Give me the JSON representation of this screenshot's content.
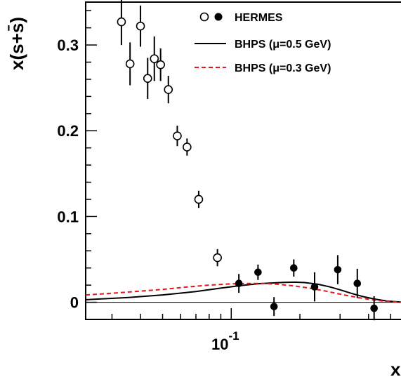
{
  "chart_data": {
    "type": "scatter",
    "xscale": "log",
    "xlim": [
      0.023,
      0.6
    ],
    "ylim": [
      -0.02,
      0.35
    ],
    "ylabel": "x(s+s̄)",
    "xlabel": "x",
    "yticks": [
      {
        "value": 0,
        "label": "0"
      },
      {
        "value": 0.1,
        "label": "0.1"
      },
      {
        "value": 0.2,
        "label": "0.2"
      },
      {
        "value": 0.3,
        "label": "0.3"
      }
    ],
    "xtick_major": {
      "value": 0.1,
      "base": "10",
      "exponent": "-1"
    },
    "xtick_minor": [
      0.03,
      0.04,
      0.05,
      0.06,
      0.07,
      0.08,
      0.09,
      0.2,
      0.3,
      0.4,
      0.5
    ],
    "legend": {
      "position": "top-right",
      "entries": [
        {
          "label": "HERMES",
          "marker": "open-and-filled-circle"
        },
        {
          "label": "BHPS (μ=0.5 GeV)",
          "style": "solid",
          "color": "#000000"
        },
        {
          "label": "BHPS (μ=0.3 GeV)",
          "style": "dashed",
          "color": "#e8141c"
        }
      ]
    },
    "series": [
      {
        "name": "HERMES",
        "marker": "open-circle",
        "points": [
          {
            "x": 0.033,
            "y": 0.327,
            "err": 0.027
          },
          {
            "x": 0.036,
            "y": 0.278,
            "err": 0.025
          },
          {
            "x": 0.04,
            "y": 0.322,
            "err": 0.024
          },
          {
            "x": 0.043,
            "y": 0.261,
            "err": 0.024
          },
          {
            "x": 0.046,
            "y": 0.284,
            "err": 0.026
          },
          {
            "x": 0.049,
            "y": 0.277,
            "err": 0.019
          },
          {
            "x": 0.053,
            "y": 0.248,
            "err": 0.016
          },
          {
            "x": 0.058,
            "y": 0.194,
            "err": 0.012
          },
          {
            "x": 0.064,
            "y": 0.181,
            "err": 0.01
          },
          {
            "x": 0.072,
            "y": 0.12,
            "err": 0.01
          },
          {
            "x": 0.087,
            "y": 0.052,
            "err": 0.01
          }
        ]
      },
      {
        "name": "HERMES",
        "marker": "filled-circle",
        "points": [
          {
            "x": 0.108,
            "y": 0.022,
            "err": 0.011
          },
          {
            "x": 0.131,
            "y": 0.035,
            "err": 0.009
          },
          {
            "x": 0.154,
            "y": -0.005,
            "err": 0.011
          },
          {
            "x": 0.188,
            "y": 0.04,
            "err": 0.01
          },
          {
            "x": 0.232,
            "y": 0.018,
            "err": 0.017
          },
          {
            "x": 0.293,
            "y": 0.038,
            "err": 0.017
          },
          {
            "x": 0.357,
            "y": 0.022,
            "err": 0.017
          },
          {
            "x": 0.423,
            "y": -0.007,
            "err": 0.014
          }
        ]
      },
      {
        "name": "BHPS (μ=0.5 GeV)",
        "style": "solid",
        "color": "#000000",
        "points": [
          {
            "x": 0.023,
            "y": 0.003
          },
          {
            "x": 0.035,
            "y": 0.0055
          },
          {
            "x": 0.05,
            "y": 0.0085
          },
          {
            "x": 0.07,
            "y": 0.0125
          },
          {
            "x": 0.09,
            "y": 0.0165
          },
          {
            "x": 0.11,
            "y": 0.0195
          },
          {
            "x": 0.13,
            "y": 0.0215
          },
          {
            "x": 0.15,
            "y": 0.0225
          },
          {
            "x": 0.17,
            "y": 0.0232
          },
          {
            "x": 0.19,
            "y": 0.0235
          },
          {
            "x": 0.21,
            "y": 0.023
          },
          {
            "x": 0.24,
            "y": 0.021
          },
          {
            "x": 0.27,
            "y": 0.018
          },
          {
            "x": 0.3,
            "y": 0.0145
          },
          {
            "x": 0.34,
            "y": 0.01
          },
          {
            "x": 0.38,
            "y": 0.0065
          },
          {
            "x": 0.43,
            "y": 0.0035
          },
          {
            "x": 0.48,
            "y": 0.0015
          },
          {
            "x": 0.55,
            "y": 0.0003
          },
          {
            "x": 0.6,
            "y": 0.0
          }
        ]
      },
      {
        "name": "BHPS (μ=0.3 GeV)",
        "style": "dashed",
        "color": "#e8141c",
        "points": [
          {
            "x": 0.023,
            "y": 0.0085
          },
          {
            "x": 0.03,
            "y": 0.0105
          },
          {
            "x": 0.04,
            "y": 0.013
          },
          {
            "x": 0.05,
            "y": 0.015
          },
          {
            "x": 0.065,
            "y": 0.018
          },
          {
            "x": 0.08,
            "y": 0.02
          },
          {
            "x": 0.1,
            "y": 0.0215
          },
          {
            "x": 0.12,
            "y": 0.022
          },
          {
            "x": 0.14,
            "y": 0.022
          },
          {
            "x": 0.16,
            "y": 0.021
          },
          {
            "x": 0.19,
            "y": 0.019
          },
          {
            "x": 0.22,
            "y": 0.0165
          },
          {
            "x": 0.26,
            "y": 0.013
          },
          {
            "x": 0.3,
            "y": 0.0095
          },
          {
            "x": 0.35,
            "y": 0.006
          },
          {
            "x": 0.4,
            "y": 0.0035
          },
          {
            "x": 0.46,
            "y": 0.0015
          },
          {
            "x": 0.53,
            "y": 0.0004
          },
          {
            "x": 0.6,
            "y": 0.0
          }
        ]
      }
    ]
  }
}
